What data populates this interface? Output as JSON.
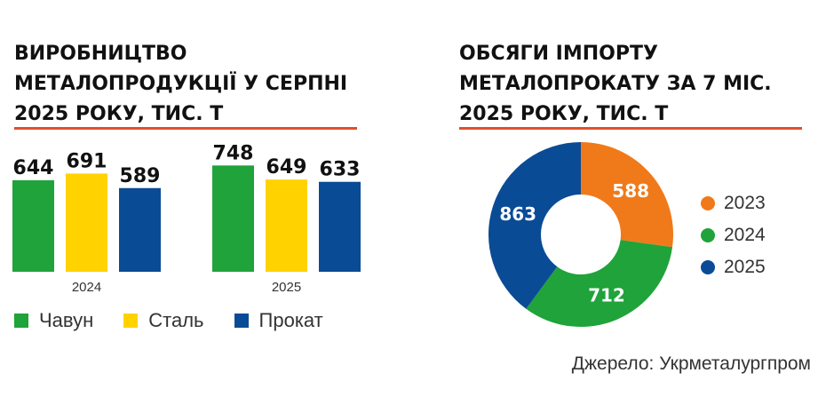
{
  "colors": {
    "accent_rule": "#E0502A",
    "green": "#1FA33A",
    "yellow": "#FFD200",
    "blue": "#0A4B96",
    "orange": "#F07A1A"
  },
  "left": {
    "title_lines": [
      "ВИРОБНИЦТВО",
      "МЕТАЛОПРОДУКЦІЇ У СЕРПНІ",
      "2025 РОКУ, ТИС. Т"
    ]
  },
  "right": {
    "title_lines": [
      "ОБСЯГИ ІМПОРТУ",
      "МЕТАЛОПРОКАТУ ЗА 7 МІС.",
      "2025 РОКУ, ТИС. Т"
    ]
  },
  "source": "Джерело: Укрметалургпром",
  "chart_data": [
    {
      "type": "bar",
      "title": "ВИРОБНИЦТВО МЕТАЛОПРОДУКЦІЇ У СЕРПНІ 2025 РОКУ, ТИС. Т",
      "categories": [
        "2024",
        "2025"
      ],
      "series": [
        {
          "name": "Чавун",
          "color": "#1FA33A",
          "values": [
            644,
            748
          ]
        },
        {
          "name": "Сталь",
          "color": "#FFD200",
          "values": [
            691,
            649
          ]
        },
        {
          "name": "Прокат",
          "color": "#0A4B96",
          "values": [
            589,
            633
          ]
        }
      ],
      "ylim": [
        0,
        800
      ],
      "grid": false,
      "legend": "bottom"
    },
    {
      "type": "pie",
      "subtype": "donut",
      "title": "ОБСЯГИ ІМПОРТУ МЕТАЛОПРОКАТУ ЗА 7 МІС. 2025 РОКУ, ТИС. Т",
      "slices": [
        {
          "label": "2023",
          "value": 588,
          "color": "#F07A1A"
        },
        {
          "label": "2024",
          "value": 712,
          "color": "#1FA33A"
        },
        {
          "label": "2025",
          "value": 863,
          "color": "#0A4B96"
        }
      ],
      "legend": "right"
    }
  ]
}
